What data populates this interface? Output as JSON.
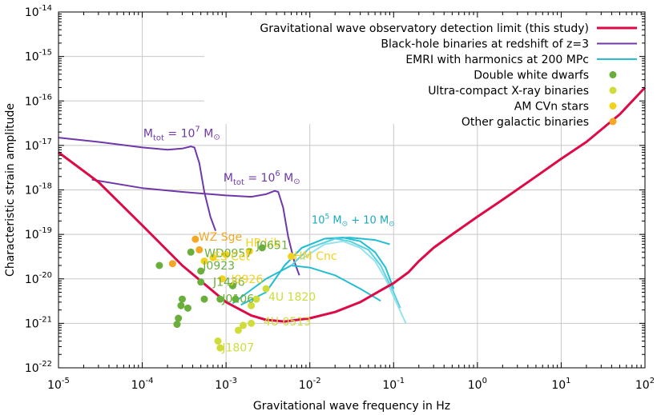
{
  "chart_data": {
    "type": "line",
    "title": "",
    "xlabel": "Gravitational wave frequency in Hz",
    "ylabel": "Characteristic strain amplitude",
    "xscale": "log",
    "yscale": "log",
    "xlim": [
      1e-05,
      100
    ],
    "ylim": [
      1e-22,
      1e-14
    ],
    "grid": true,
    "x_ticks": [
      {
        "base": "10",
        "exp": "-5",
        "value": 1e-05
      },
      {
        "base": "10",
        "exp": "-4",
        "value": 0.0001
      },
      {
        "base": "10",
        "exp": "-3",
        "value": 0.001
      },
      {
        "base": "10",
        "exp": "-2",
        "value": 0.01
      },
      {
        "base": "10",
        "exp": "-1",
        "value": 0.1
      },
      {
        "base": "10",
        "exp": "0",
        "value": 1
      },
      {
        "base": "10",
        "exp": "1",
        "value": 10
      },
      {
        "base": "10",
        "exp": "2",
        "value": 100
      }
    ],
    "y_ticks": [
      {
        "base": "10",
        "exp": "-22",
        "value": 1e-22
      },
      {
        "base": "10",
        "exp": "-21",
        "value": 1e-21
      },
      {
        "base": "10",
        "exp": "-20",
        "value": 1e-20
      },
      {
        "base": "10",
        "exp": "-19",
        "value": 1e-19
      },
      {
        "base": "10",
        "exp": "-18",
        "value": 1e-18
      },
      {
        "base": "10",
        "exp": "-17",
        "value": 1e-17
      },
      {
        "base": "10",
        "exp": "-16",
        "value": 1e-16
      },
      {
        "base": "10",
        "exp": "-15",
        "value": 1e-15
      },
      {
        "base": "10",
        "exp": "-14",
        "value": 1e-14
      }
    ],
    "legend_position": "top-right",
    "legend": [
      {
        "label": "Gravitational wave observatory detection limit (this study)",
        "kind": "line",
        "color": "#dc0a46"
      },
      {
        "label": "Black-hole binaries at redshift of z=3",
        "kind": "line",
        "color": "#6f37aa"
      },
      {
        "label": "EMRI with harmonics at 200 MPc",
        "kind": "line",
        "color": "#23bed2"
      },
      {
        "label": "Double white dwarfs",
        "kind": "point",
        "color": "#6aae3b"
      },
      {
        "label": "Ultra-compact X-ray binaries",
        "kind": "point",
        "color": "#cfdc3a"
      },
      {
        "label": "AM CVn stars",
        "kind": "point",
        "color": "#f2d21e"
      },
      {
        "label": "Other galactic binaries",
        "kind": "point",
        "color": "#f5a623"
      }
    ],
    "series": [
      {
        "name": "detection_limit",
        "color": "#dc0a46",
        "points": [
          [
            1e-05,
            7e-18
          ],
          [
            3e-05,
            1.5e-18
          ],
          [
            0.0001,
            1.6e-19
          ],
          [
            0.0003,
            2e-20
          ],
          [
            0.001,
            3e-21
          ],
          [
            0.002,
            1.5e-21
          ],
          [
            0.003,
            1.2e-21
          ],
          [
            0.005,
            1.1e-21
          ],
          [
            0.01,
            1.3e-21
          ],
          [
            0.02,
            1.8e-21
          ],
          [
            0.04,
            3e-21
          ],
          [
            0.07,
            5.5e-21
          ],
          [
            0.1,
            8e-21
          ],
          [
            0.15,
            1.4e-20
          ],
          [
            0.2,
            2.5e-20
          ],
          [
            0.3,
            5e-20
          ],
          [
            0.5,
            1e-19
          ],
          [
            1,
            2.5e-19
          ],
          [
            2,
            6e-19
          ],
          [
            5,
            2e-18
          ],
          [
            10,
            5e-18
          ],
          [
            20,
            1.2e-17
          ],
          [
            50,
            5e-17
          ],
          [
            100,
            2e-16
          ]
        ]
      },
      {
        "name": "bhb_1e7",
        "color": "#6f37aa",
        "points": [
          [
            1e-05,
            1.5e-17
          ],
          [
            3e-05,
            1.2e-17
          ],
          [
            0.0001,
            9e-18
          ],
          [
            0.0002,
            8e-18
          ],
          [
            0.0003,
            8.5e-18
          ],
          [
            0.00038,
            9.5e-18
          ],
          [
            0.00042,
            9e-18
          ],
          [
            0.00048,
            4e-18
          ],
          [
            0.00055,
            9e-19
          ],
          [
            0.00065,
            2.5e-19
          ],
          [
            0.00075,
            1.2e-19
          ]
        ]
      },
      {
        "name": "bhb_1e6",
        "color": "#6f37aa",
        "points": [
          [
            2.5e-05,
            1.7e-18
          ],
          [
            0.0001,
            1.1e-18
          ],
          [
            0.0003,
            9e-19
          ],
          [
            0.001,
            7.5e-19
          ],
          [
            0.002,
            7e-19
          ],
          [
            0.003,
            8e-19
          ],
          [
            0.0038,
            9.5e-19
          ],
          [
            0.0042,
            9e-19
          ],
          [
            0.0048,
            4e-19
          ],
          [
            0.0055,
            9e-20
          ],
          [
            0.0065,
            2.5e-20
          ],
          [
            0.0075,
            1.2e-20
          ]
        ]
      },
      {
        "name": "emri_1",
        "color": "#23bed2",
        "points": [
          [
            0.0012,
            2.8e-21
          ],
          [
            0.003,
            1e-20
          ],
          [
            0.006,
            2e-20
          ],
          [
            0.01,
            1.8e-20
          ],
          [
            0.02,
            1.2e-20
          ],
          [
            0.04,
            6e-21
          ],
          [
            0.07,
            3.2e-21
          ]
        ]
      },
      {
        "name": "emri_2",
        "color": "#23bed2",
        "points": [
          [
            0.0015,
            2.6e-21
          ],
          [
            0.003,
            5e-21
          ],
          [
            0.005,
            2e-20
          ],
          [
            0.008,
            5e-20
          ],
          [
            0.015,
            8e-20
          ],
          [
            0.03,
            8.5e-20
          ],
          [
            0.06,
            7.5e-20
          ],
          [
            0.09,
            6e-20
          ]
        ]
      },
      {
        "name": "emri_3",
        "color": "#23bed2",
        "points": [
          [
            0.005,
            2e-20
          ],
          [
            0.008,
            5e-20
          ],
          [
            0.015,
            8e-20
          ],
          [
            0.025,
            8.5e-20
          ],
          [
            0.04,
            7e-20
          ],
          [
            0.06,
            4e-20
          ],
          [
            0.08,
            1.8e-20
          ],
          [
            0.1,
            6e-21
          ]
        ]
      },
      {
        "name": "emri_4",
        "color": "#5ad2e0",
        "points": [
          [
            0.006,
            2e-20
          ],
          [
            0.01,
            5e-20
          ],
          [
            0.02,
            8e-20
          ],
          [
            0.03,
            7e-20
          ],
          [
            0.05,
            4.5e-20
          ],
          [
            0.07,
            2e-20
          ],
          [
            0.1,
            5e-21
          ],
          [
            0.12,
            2.2e-21
          ]
        ]
      },
      {
        "name": "emri_5",
        "color": "#96e2ec",
        "points": [
          [
            0.008,
            2.8e-20
          ],
          [
            0.015,
            6e-20
          ],
          [
            0.025,
            7e-20
          ],
          [
            0.04,
            5e-20
          ],
          [
            0.06,
            2.5e-20
          ],
          [
            0.08,
            1e-20
          ],
          [
            0.1,
            4e-21
          ],
          [
            0.14,
            1e-21
          ]
        ]
      }
    ],
    "points": [
      {
        "x": 0.00016,
        "y": 2e-20,
        "color": "#6aae3b"
      },
      {
        "x": 0.0003,
        "y": 3.5e-21,
        "color": "#6aae3b"
      },
      {
        "x": 0.00029,
        "y": 2.5e-21,
        "color": "#6aae3b"
      },
      {
        "x": 0.00035,
        "y": 2.2e-21,
        "color": "#6aae3b"
      },
      {
        "x": 0.00027,
        "y": 1.3e-21,
        "color": "#6aae3b"
      },
      {
        "x": 0.00026,
        "y": 9.5e-22,
        "color": "#6aae3b"
      },
      {
        "x": 0.00038,
        "y": 4e-20,
        "color": "#6aae3b"
      },
      {
        "x": 0.0005,
        "y": 1.5e-20,
        "color": "#6aae3b"
      },
      {
        "x": 0.0005,
        "y": 8.5e-21,
        "color": "#6aae3b"
      },
      {
        "x": 0.00055,
        "y": 3.5e-21,
        "color": "#6aae3b"
      },
      {
        "x": 0.00085,
        "y": 3.5e-21,
        "color": "#6aae3b"
      },
      {
        "x": 0.0027,
        "y": 5e-20,
        "color": "#6aae3b"
      },
      {
        "x": 0.0012,
        "y": 7e-21,
        "color": "#6aae3b"
      },
      {
        "x": 0.0013,
        "y": 3.5e-21,
        "color": "#6aae3b"
      },
      {
        "x": 0.0008,
        "y": 4e-22,
        "color": "#cfdc3a"
      },
      {
        "x": 0.00085,
        "y": 2.8e-22,
        "color": "#cfdc3a"
      },
      {
        "x": 0.0014,
        "y": 7e-22,
        "color": "#cfdc3a"
      },
      {
        "x": 0.0016,
        "y": 9e-22,
        "color": "#cfdc3a"
      },
      {
        "x": 0.002,
        "y": 1e-21,
        "color": "#cfdc3a"
      },
      {
        "x": 0.002,
        "y": 2.5e-21,
        "color": "#cfdc3a"
      },
      {
        "x": 0.0023,
        "y": 3.5e-21,
        "color": "#cfdc3a"
      },
      {
        "x": 0.003,
        "y": 6e-21,
        "color": "#cfdc3a"
      },
      {
        "x": 0.006,
        "y": 3.2e-20,
        "color": "#f2d21e"
      },
      {
        "x": 0.0019,
        "y": 4.2e-20,
        "color": "#f2d21e"
      },
      {
        "x": 0.001,
        "y": 3.5e-20,
        "color": "#f2d21e"
      },
      {
        "x": 0.0007,
        "y": 3e-20,
        "color": "#f2d21e"
      },
      {
        "x": 0.00055,
        "y": 2.5e-20,
        "color": "#f2d21e"
      },
      {
        "x": 0.0009,
        "y": 1e-20,
        "color": "#f2d21e"
      },
      {
        "x": 0.00043,
        "y": 7.8e-20,
        "color": "#f5a623"
      },
      {
        "x": 0.00048,
        "y": 4.5e-20,
        "color": "#f5a623"
      },
      {
        "x": 0.00023,
        "y": 2.2e-20,
        "color": "#f5a623"
      }
    ],
    "annotations": [
      {
        "text": "WZ Sge",
        "x": 0.00047,
        "y": 8.8e-20,
        "color": "#f5a623"
      },
      {
        "text": "WD0957",
        "x": 0.00055,
        "y": 3.8e-20,
        "color": "#6aae3b"
      },
      {
        "text": "J0923",
        "x": 0.00053,
        "y": 2e-20,
        "color": "#6aae3b"
      },
      {
        "text": "HP Lib",
        "x": 0.0017,
        "y": 6.5e-20,
        "color": "#f2d21e"
      },
      {
        "text": "J0651",
        "x": 0.0023,
        "y": 5.8e-20,
        "color": "#6aae3b"
      },
      {
        "text": "HM Cnc",
        "x": 0.0065,
        "y": 3.3e-20,
        "color": "#f2d21e"
      },
      {
        "text": "ES Cet",
        "x": 0.0007,
        "y": 3.2e-20,
        "color": "#f2d21e"
      },
      {
        "text": "J1436",
        "x": 0.0007,
        "y": 8.5e-21,
        "color": "#6aae3b"
      },
      {
        "text": "J0926",
        "x": 0.00115,
        "y": 1e-20,
        "color": "#f2d21e"
      },
      {
        "text": "J0106",
        "x": 0.0009,
        "y": 3.6e-21,
        "color": "#6aae3b"
      },
      {
        "text": "4U 1820",
        "x": 0.0032,
        "y": 4e-21,
        "color": "#cfdc3a"
      },
      {
        "text": "4U 0513",
        "x": 0.0028,
        "y": 1.1e-21,
        "color": "#cfdc3a"
      },
      {
        "text": "J1807",
        "x": 0.0009,
        "y": 2.9e-22,
        "color": "#cfdc3a"
      }
    ],
    "curve_labels": [
      {
        "main": "M",
        "sub": "tot",
        "rest": " = 10",
        "exp": "7",
        "tail": " M",
        "sym": "⊙",
        "x": 0.000103,
        "y": 1.55e-17,
        "color": "#6f37aa"
      },
      {
        "main": "M",
        "sub": "tot",
        "rest": " = 10",
        "exp": "6",
        "tail": " M",
        "sym": "⊙",
        "x": 0.00093,
        "y": 1.55e-18,
        "color": "#6f37aa"
      },
      {
        "main": "10",
        "exp": "5",
        "tail": " M",
        "sym": "⊙",
        "tail2": " + 10 M",
        "sym2": "⊙",
        "x": 0.0105,
        "y": 1.75e-19,
        "color": "#1aaabb"
      }
    ]
  }
}
